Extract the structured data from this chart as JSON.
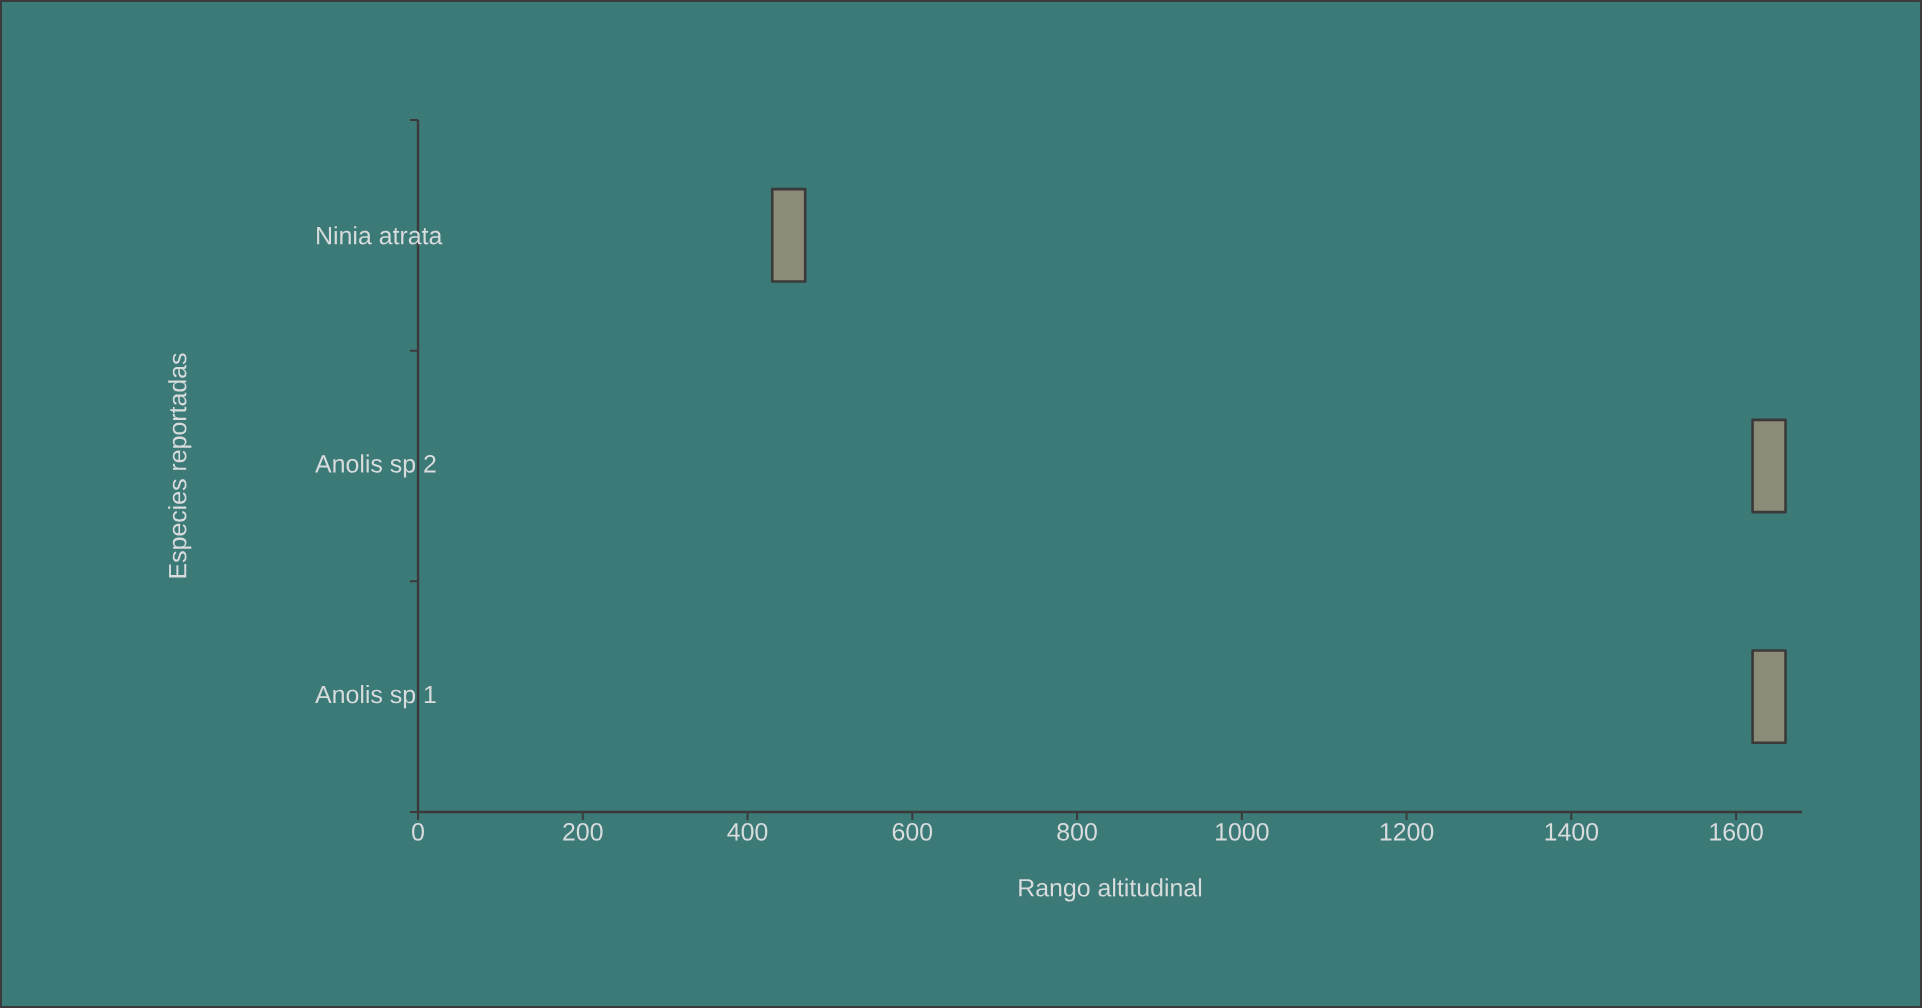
{
  "chart_data": {
    "type": "bar",
    "orientation": "horizontal",
    "categories": [
      "Ninia atrata",
      "Anolis sp 2",
      "Anolis sp 1"
    ],
    "base": [
      430,
      1620,
      1620
    ],
    "values": [
      40,
      40,
      40
    ],
    "color": "#8c8b78",
    "xlabel": "Rango altitudinal",
    "ylabel": "Especies reportadas",
    "xlim": [
      0,
      1680
    ],
    "xticks": [
      0,
      200,
      400,
      600,
      800,
      1000,
      1200,
      1400,
      1600
    ],
    "grid": false
  }
}
